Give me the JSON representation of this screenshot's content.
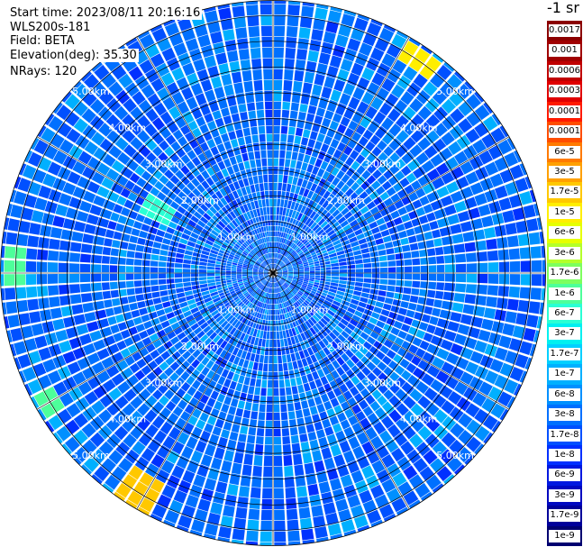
{
  "header": {
    "start_time": "Start time: 2023/08/11 20:16:16",
    "instrument": "WLS200s-181",
    "field": "Field: BETA",
    "elevation": "Elevation(deg): 35.30",
    "nrays": "NRays: 120"
  },
  "legend": {
    "unit": "-1 sr",
    "entries": [
      {
        "label": "0.0017",
        "color": "#8b0000"
      },
      {
        "label": "0.001",
        "color": "#a00000"
      },
      {
        "label": "0.0006",
        "color": "#c00000"
      },
      {
        "label": "0.0003",
        "color": "#e00000"
      },
      {
        "label": "0.00017",
        "color": "#ff1a00"
      },
      {
        "label": "0.0001",
        "color": "#ff4d00"
      },
      {
        "label": "6e-5",
        "color": "#ff7a00"
      },
      {
        "label": "3e-5",
        "color": "#ffa000"
      },
      {
        "label": "1.7e-5",
        "color": "#ffc800"
      },
      {
        "label": "1e-5",
        "color": "#ffee00"
      },
      {
        "label": "6e-6",
        "color": "#e6ff00"
      },
      {
        "label": "3e-6",
        "color": "#b4ff2a"
      },
      {
        "label": "1.7e-6",
        "color": "#7dff5e"
      },
      {
        "label": "1e-6",
        "color": "#4dff9a"
      },
      {
        "label": "6e-7",
        "color": "#2affd4"
      },
      {
        "label": "3e-7",
        "color": "#00f0f0"
      },
      {
        "label": "1.7e-7",
        "color": "#00d0ff"
      },
      {
        "label": "1e-7",
        "color": "#00b0ff"
      },
      {
        "label": "6e-8",
        "color": "#0090ff"
      },
      {
        "label": "3e-8",
        "color": "#0070ff"
      },
      {
        "label": "1.7e-8",
        "color": "#0050ff"
      },
      {
        "label": "1e-8",
        "color": "#0030ff"
      },
      {
        "label": "6e-9",
        "color": "#0018e0"
      },
      {
        "label": "3e-9",
        "color": "#0008c0"
      },
      {
        "label": "1.7e-9",
        "color": "#00009a"
      },
      {
        "label": "1e-9",
        "color": "#000070"
      }
    ]
  },
  "chart_data": {
    "type": "heatmap",
    "projection": "polar",
    "field": "BETA",
    "nrays": 120,
    "max_range_km": 5.3,
    "range_rings_km": [
      0.5,
      1.0,
      1.5,
      2.0,
      2.5,
      3.0,
      3.5,
      4.0,
      4.5,
      5.0
    ],
    "range_ring_labels": [
      "1.00km",
      "2.00km",
      "3.00km",
      "4.00km",
      "5.00km"
    ],
    "spokes_deg": [
      0,
      30,
      60,
      90,
      120,
      150,
      180,
      210,
      240,
      270,
      300,
      330
    ],
    "dominant_value_range": [
      "1e-8",
      "6e-8"
    ],
    "hotspots": [
      {
        "azimuth_deg": 35,
        "range_km": [
          4.8,
          5.2
        ],
        "value": "1e-5"
      },
      {
        "azimuth_deg": 212,
        "range_km": [
          4.6,
          5.3
        ],
        "value": "1.7e-5"
      },
      {
        "azimuth_deg": 272,
        "range_km": [
          4.9,
          5.2
        ],
        "value": "1e-6"
      },
      {
        "azimuth_deg": 298,
        "range_km": [
          2.3,
          2.8
        ],
        "value": "6e-7"
      },
      {
        "azimuth_deg": 240,
        "range_km": [
          4.9,
          5.2
        ],
        "value": "1e-6"
      }
    ]
  }
}
